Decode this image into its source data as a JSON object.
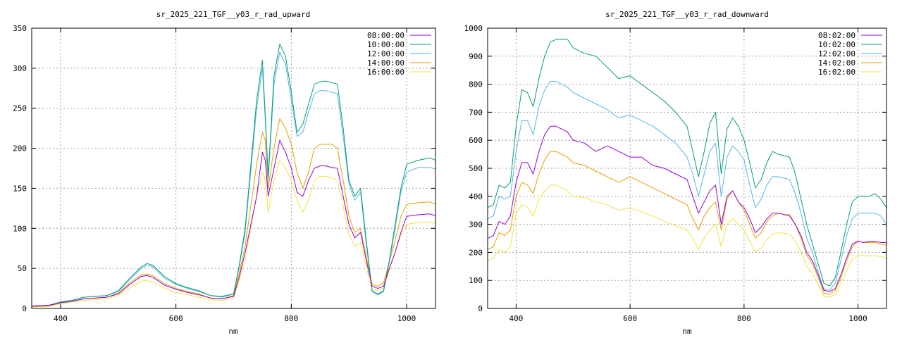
{
  "chart_data": [
    {
      "type": "line",
      "title": "sr_2025_221_TGF__y03_r_rad_upward",
      "xlabel": "nm",
      "ylabel": "",
      "xlim": [
        350,
        1050
      ],
      "ylim": [
        0,
        350
      ],
      "xticks": [
        400,
        600,
        800,
        1000
      ],
      "yticks": [
        0,
        50,
        100,
        150,
        200,
        250,
        300,
        350
      ],
      "grid": true,
      "legend_position": "top-right",
      "x": [
        350,
        380,
        400,
        420,
        440,
        460,
        480,
        500,
        520,
        540,
        550,
        560,
        580,
        600,
        620,
        640,
        660,
        680,
        700,
        710,
        720,
        740,
        750,
        755,
        760,
        770,
        780,
        790,
        800,
        810,
        820,
        830,
        840,
        850,
        860,
        870,
        880,
        890,
        900,
        910,
        920,
        930,
        940,
        950,
        960,
        970,
        980,
        990,
        1000,
        1020,
        1040,
        1050
      ],
      "series": [
        {
          "name": "08:00:00",
          "color": "#9400d3",
          "values": [
            3,
            4,
            7,
            9,
            12,
            13,
            14,
            18,
            30,
            40,
            41,
            39,
            29,
            24,
            20,
            17,
            13,
            12,
            15,
            40,
            70,
            140,
            195,
            185,
            140,
            175,
            210,
            195,
            175,
            145,
            140,
            160,
            175,
            178,
            178,
            176,
            175,
            140,
            105,
            88,
            95,
            60,
            28,
            25,
            28,
            50,
            70,
            95,
            115,
            117,
            118,
            116
          ]
        },
        {
          "name": "10:00:00",
          "color": "#009e73",
          "values": [
            3,
            4,
            8,
            10,
            14,
            15,
            16,
            22,
            38,
            52,
            56,
            54,
            40,
            31,
            26,
            22,
            16,
            15,
            18,
            55,
            100,
            260,
            310,
            240,
            165,
            290,
            330,
            315,
            270,
            220,
            230,
            255,
            280,
            283,
            284,
            282,
            280,
            225,
            160,
            140,
            150,
            85,
            22,
            18,
            22,
            60,
            105,
            150,
            180,
            185,
            188,
            185
          ]
        },
        {
          "name": "12:00:00",
          "color": "#56b4e9",
          "values": [
            3,
            4,
            8,
            10,
            14,
            15,
            16,
            21,
            36,
            50,
            54,
            52,
            38,
            30,
            25,
            21,
            16,
            14,
            18,
            53,
            95,
            250,
            300,
            235,
            160,
            280,
            320,
            305,
            260,
            215,
            220,
            245,
            268,
            272,
            272,
            270,
            268,
            215,
            155,
            135,
            145,
            80,
            21,
            17,
            21,
            58,
            100,
            145,
            170,
            176,
            176,
            174
          ]
        },
        {
          "name": "14:00:00",
          "color": "#e69f00",
          "values": [
            2,
            3,
            7,
            9,
            12,
            13,
            14,
            19,
            32,
            42,
            43,
            41,
            31,
            25,
            21,
            18,
            13,
            12,
            16,
            45,
            78,
            180,
            220,
            210,
            150,
            200,
            237,
            225,
            205,
            170,
            150,
            170,
            200,
            205,
            205,
            205,
            200,
            160,
            115,
            95,
            100,
            65,
            30,
            28,
            32,
            58,
            85,
            115,
            130,
            132,
            133,
            130
          ]
        },
        {
          "name": "16:00:00",
          "color": "#f0e442",
          "values": [
            2,
            3,
            6,
            8,
            10,
            11,
            12,
            16,
            26,
            34,
            35,
            33,
            25,
            20,
            17,
            14,
            11,
            10,
            13,
            36,
            62,
            140,
            170,
            160,
            120,
            160,
            185,
            175,
            160,
            135,
            120,
            135,
            160,
            165,
            165,
            163,
            160,
            128,
            92,
            78,
            82,
            52,
            24,
            22,
            26,
            48,
            70,
            92,
            105,
            107,
            108,
            106
          ]
        }
      ]
    },
    {
      "type": "line",
      "title": "sr_2025_221_TGF__y03_r_rad_downward",
      "xlabel": "nm",
      "ylabel": "",
      "xlim": [
        350,
        1050
      ],
      "ylim": [
        0,
        1000
      ],
      "xticks": [
        400,
        600,
        800,
        1000
      ],
      "yticks": [
        0,
        100,
        200,
        300,
        400,
        500,
        600,
        700,
        800,
        900,
        1000
      ],
      "grid": true,
      "legend_position": "top-right",
      "x": [
        350,
        360,
        370,
        380,
        390,
        400,
        410,
        420,
        430,
        440,
        450,
        460,
        470,
        480,
        490,
        500,
        520,
        540,
        560,
        580,
        600,
        620,
        640,
        660,
        680,
        700,
        710,
        720,
        730,
        740,
        750,
        760,
        770,
        780,
        790,
        800,
        810,
        820,
        830,
        840,
        850,
        860,
        870,
        880,
        890,
        900,
        910,
        920,
        930,
        940,
        950,
        960,
        970,
        980,
        990,
        1000,
        1010,
        1020,
        1030,
        1040,
        1050
      ],
      "series": [
        {
          "name": "08:02:00",
          "color": "#9400d3",
          "values": [
            250,
            260,
            310,
            300,
            330,
            450,
            520,
            520,
            480,
            560,
            620,
            650,
            650,
            640,
            630,
            600,
            590,
            560,
            580,
            560,
            540,
            540,
            510,
            500,
            480,
            460,
            400,
            340,
            380,
            420,
            440,
            300,
            400,
            420,
            380,
            360,
            320,
            270,
            290,
            320,
            340,
            340,
            335,
            330,
            300,
            260,
            200,
            170,
            120,
            65,
            60,
            70,
            120,
            180,
            230,
            240,
            235,
            240,
            240,
            235,
            235
          ]
        },
        {
          "name": "10:02:00",
          "color": "#009e73",
          "values": [
            360,
            370,
            440,
            430,
            450,
            650,
            780,
            770,
            720,
            820,
            900,
            950,
            960,
            960,
            960,
            930,
            910,
            900,
            860,
            820,
            830,
            800,
            770,
            740,
            700,
            650,
            560,
            470,
            560,
            660,
            700,
            480,
            640,
            680,
            650,
            600,
            520,
            430,
            460,
            520,
            560,
            550,
            545,
            540,
            480,
            390,
            300,
            230,
            160,
            90,
            80,
            110,
            200,
            300,
            380,
            400,
            400,
            400,
            410,
            390,
            360
          ]
        },
        {
          "name": "12:02:00",
          "color": "#56b4e9",
          "values": [
            320,
            330,
            400,
            390,
            400,
            560,
            670,
            670,
            620,
            720,
            780,
            810,
            810,
            800,
            790,
            770,
            750,
            730,
            710,
            680,
            690,
            670,
            650,
            620,
            590,
            540,
            480,
            400,
            480,
            560,
            590,
            400,
            540,
            580,
            560,
            530,
            440,
            360,
            390,
            440,
            470,
            470,
            465,
            460,
            410,
            340,
            250,
            200,
            130,
            70,
            65,
            90,
            170,
            260,
            320,
            340,
            340,
            340,
            340,
            330,
            300
          ]
        },
        {
          "name": "14:02:00",
          "color": "#e69f00",
          "values": [
            210,
            220,
            270,
            260,
            280,
            400,
            450,
            440,
            410,
            480,
            530,
            560,
            560,
            550,
            540,
            520,
            510,
            490,
            470,
            450,
            470,
            450,
            430,
            410,
            390,
            370,
            320,
            280,
            330,
            360,
            380,
            280,
            390,
            420,
            380,
            350,
            300,
            250,
            270,
            310,
            330,
            340,
            335,
            335,
            300,
            250,
            190,
            160,
            110,
            55,
            50,
            65,
            110,
            170,
            220,
            240,
            235,
            235,
            235,
            230,
            225
          ]
        },
        {
          "name": "16:02:00",
          "color": "#f0e442",
          "values": [
            170,
            180,
            210,
            200,
            220,
            340,
            370,
            360,
            330,
            390,
            420,
            440,
            440,
            430,
            420,
            400,
            395,
            380,
            370,
            350,
            360,
            345,
            330,
            310,
            295,
            280,
            250,
            210,
            250,
            280,
            300,
            220,
            300,
            320,
            300,
            280,
            240,
            200,
            215,
            245,
            265,
            270,
            268,
            265,
            240,
            200,
            150,
            125,
            85,
            45,
            40,
            50,
            90,
            135,
            175,
            190,
            188,
            188,
            188,
            185,
            180
          ]
        }
      ]
    }
  ]
}
